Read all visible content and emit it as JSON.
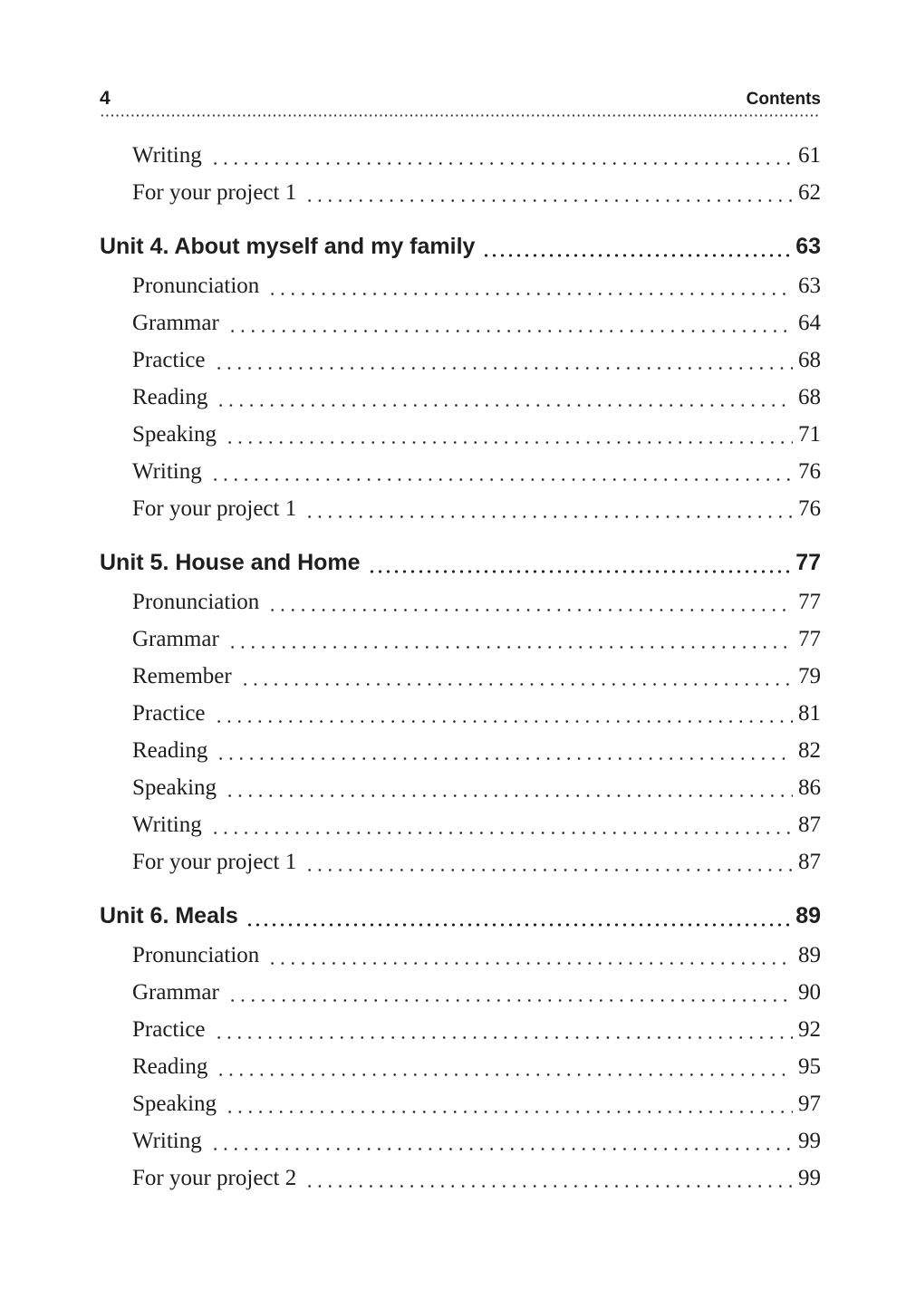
{
  "header": {
    "page_number": "4",
    "title": "Contents"
  },
  "toc": {
    "orphan_entries": [
      {
        "label": "Writing",
        "page": "61"
      },
      {
        "label": "For your project 1",
        "page": "62"
      }
    ],
    "sections": [
      {
        "title": "Unit 4. About myself and my family",
        "page": "63",
        "entries": [
          {
            "label": "Pronunciation",
            "page": "63"
          },
          {
            "label": "Grammar",
            "page": "64"
          },
          {
            "label": "Practice",
            "page": "68"
          },
          {
            "label": "Reading",
            "page": "68"
          },
          {
            "label": "Speaking",
            "page": "71"
          },
          {
            "label": "Writing",
            "page": "76"
          },
          {
            "label": "For your project 1",
            "page": "76"
          }
        ]
      },
      {
        "title": "Unit 5. House and Home",
        "page": "77",
        "entries": [
          {
            "label": "Pronunciation",
            "page": "77"
          },
          {
            "label": "Grammar",
            "page": "77"
          },
          {
            "label": "Remember",
            "page": "79"
          },
          {
            "label": "Practice",
            "page": "81"
          },
          {
            "label": "Reading",
            "page": "82"
          },
          {
            "label": "Speaking",
            "page": "86"
          },
          {
            "label": "Writing",
            "page": "87"
          },
          {
            "label": "For your project 1",
            "page": "87"
          }
        ]
      },
      {
        "title": "Unit 6. Meals",
        "page": "89",
        "entries": [
          {
            "label": "Pronunciation",
            "page": "89"
          },
          {
            "label": "Grammar",
            "page": "90"
          },
          {
            "label": "Practice",
            "page": "92"
          },
          {
            "label": "Reading",
            "page": "95"
          },
          {
            "label": "Speaking",
            "page": "97"
          },
          {
            "label": "Writing",
            "page": "99"
          },
          {
            "label": "For your project 2",
            "page": "99"
          }
        ]
      }
    ]
  }
}
